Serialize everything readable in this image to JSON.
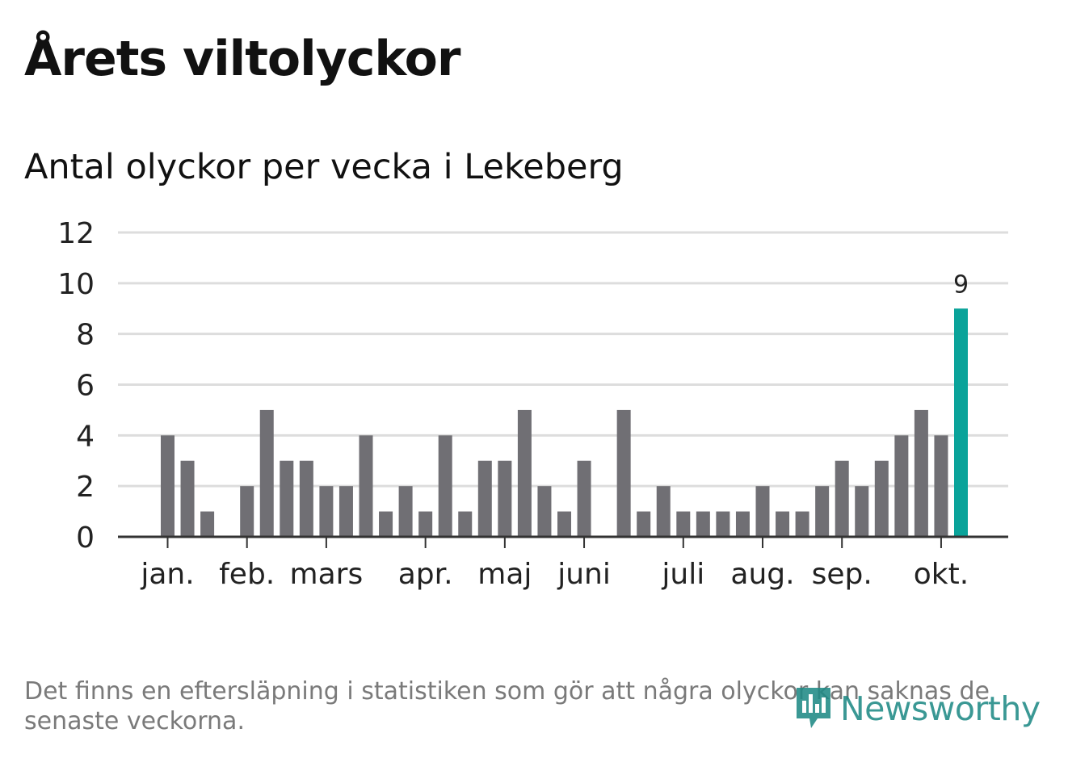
{
  "title": "Årets viltolyckor",
  "subtitle": "Antal olyckor per vecka i Lekeberg",
  "note": "Det finns en eftersläpning i statistiken som gör att några olyckor kan saknas de senaste veckorna.",
  "logo": {
    "text": "Newsworthy",
    "icon": "newsworthy-logo-icon"
  },
  "colors": {
    "bar": "#706f74",
    "highlight": "#0aa39a",
    "grid": "#dddddd",
    "axis": "#333333",
    "text": "#222222"
  },
  "chart_data": {
    "type": "bar",
    "title": "Antal olyckor per vecka i Lekeberg",
    "xlabel": "",
    "ylabel": "",
    "ylim": [
      0,
      12
    ],
    "yticks": [
      0,
      2,
      4,
      6,
      8,
      10,
      12
    ],
    "grid": true,
    "values": [
      4,
      3,
      1,
      0,
      2,
      5,
      3,
      3,
      2,
      2,
      4,
      1,
      2,
      1,
      4,
      1,
      3,
      3,
      5,
      2,
      1,
      3,
      0,
      5,
      1,
      2,
      1,
      1,
      1,
      1,
      2,
      1,
      1,
      2,
      3,
      2,
      3,
      4,
      5,
      4,
      9
    ],
    "highlight_index": 40,
    "highlight_label": "9",
    "month_labels": [
      {
        "label": "jan.",
        "week_index": 0
      },
      {
        "label": "feb.",
        "week_index": 4
      },
      {
        "label": "mars",
        "week_index": 8
      },
      {
        "label": "apr.",
        "week_index": 13
      },
      {
        "label": "maj",
        "week_index": 17
      },
      {
        "label": "juni",
        "week_index": 21
      },
      {
        "label": "juli",
        "week_index": 26
      },
      {
        "label": "aug.",
        "week_index": 30
      },
      {
        "label": "sep.",
        "week_index": 34
      },
      {
        "label": "okt.",
        "week_index": 39
      }
    ]
  }
}
